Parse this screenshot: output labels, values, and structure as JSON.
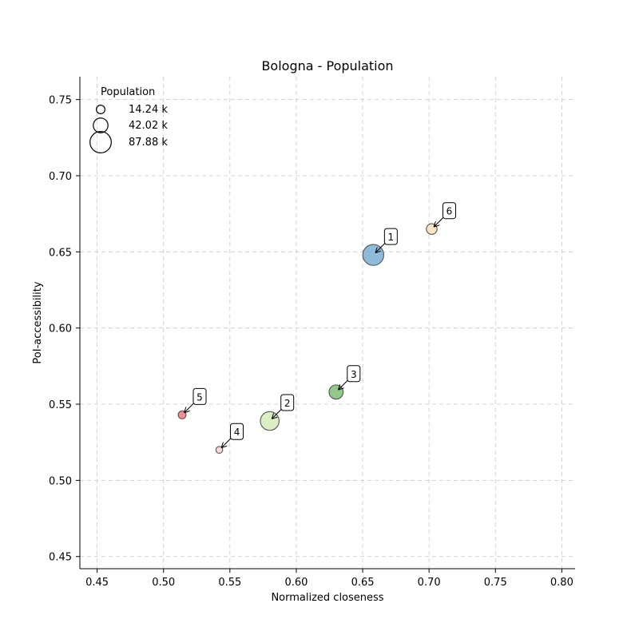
{
  "chart_data": {
    "type": "scatter",
    "title": "Bologna - Population",
    "xlabel": "Normalized closeness",
    "ylabel": "PoI-accessibility",
    "xlim": [
      0.437,
      0.81
    ],
    "ylim": [
      0.442,
      0.765
    ],
    "xticks": [
      0.45,
      0.5,
      0.55,
      0.6,
      0.65,
      0.7,
      0.75,
      0.8
    ],
    "yticks": [
      0.45,
      0.5,
      0.55,
      0.6,
      0.65,
      0.7,
      0.75
    ],
    "grid": true,
    "legend": {
      "title": "Population",
      "placement": "top-left",
      "entries": [
        {
          "label": "14.24 k",
          "value": 14.24
        },
        {
          "label": "42.02 k",
          "value": 42.02
        },
        {
          "label": "87.88 k",
          "value": 87.88
        }
      ]
    },
    "points": [
      {
        "id": "1",
        "x": 0.658,
        "y": 0.648,
        "population": 85.0,
        "color": "#7bafd4"
      },
      {
        "id": "2",
        "x": 0.58,
        "y": 0.539,
        "population": 68.0,
        "color": "#d4edba"
      },
      {
        "id": "3",
        "x": 0.63,
        "y": 0.558,
        "population": 39.0,
        "color": "#7fbf77"
      },
      {
        "id": "4",
        "x": 0.542,
        "y": 0.52,
        "population": 9.0,
        "color": "#fcd0d0"
      },
      {
        "id": "5",
        "x": 0.514,
        "y": 0.543,
        "population": 12.0,
        "color": "#f07a7a"
      },
      {
        "id": "6",
        "x": 0.702,
        "y": 0.665,
        "population": 22.0,
        "color": "#fde0b8"
      }
    ]
  }
}
